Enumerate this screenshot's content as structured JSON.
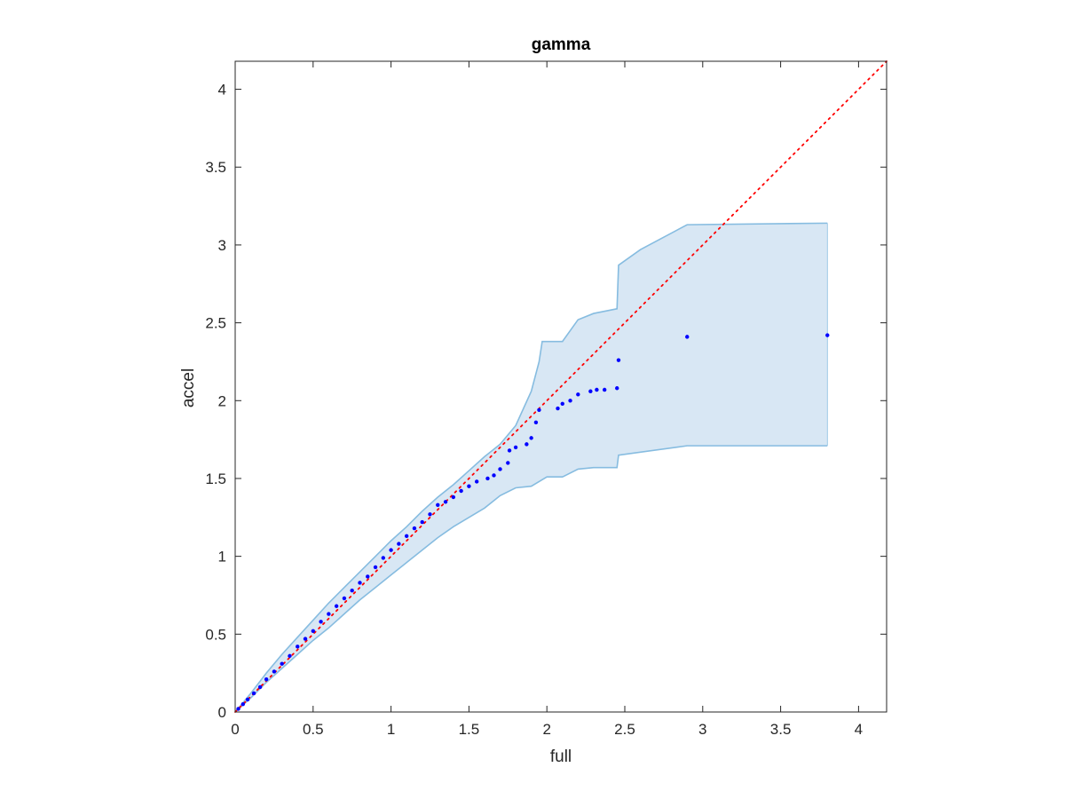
{
  "chart_data": {
    "type": "scatter",
    "title": "gamma",
    "xlabel": "full",
    "ylabel": "accel",
    "xlim": [
      0,
      4.18
    ],
    "ylim": [
      0,
      4.18
    ],
    "xticks": [
      "0",
      "0.5",
      "1",
      "1.5",
      "2",
      "2.5",
      "3",
      "3.5",
      "4"
    ],
    "yticks": [
      "0",
      "0.5",
      "1",
      "1.5",
      "2",
      "2.5",
      "3",
      "3.5",
      "4"
    ],
    "grid": false,
    "colors": {
      "points": "#0000ff",
      "reference_line": "#ff0000",
      "band_fill": "#d8e7f4",
      "band_edge": "#86bce0",
      "axes": "#262626"
    },
    "reference_line": {
      "x": [
        0,
        4.18
      ],
      "y": [
        0,
        4.18
      ],
      "style": "dotted"
    },
    "band": {
      "upper": [
        [
          0,
          0
        ],
        [
          0.1,
          0.12
        ],
        [
          0.2,
          0.25
        ],
        [
          0.3,
          0.37
        ],
        [
          0.4,
          0.48
        ],
        [
          0.5,
          0.59
        ],
        [
          0.6,
          0.7
        ],
        [
          0.7,
          0.8
        ],
        [
          0.8,
          0.9
        ],
        [
          0.9,
          1.0
        ],
        [
          1.0,
          1.1
        ],
        [
          1.1,
          1.19
        ],
        [
          1.2,
          1.29
        ],
        [
          1.3,
          1.38
        ],
        [
          1.4,
          1.46
        ],
        [
          1.5,
          1.55
        ],
        [
          1.6,
          1.64
        ],
        [
          1.7,
          1.72
        ],
        [
          1.8,
          1.84
        ],
        [
          1.9,
          2.06
        ],
        [
          1.95,
          2.25
        ],
        [
          1.97,
          2.38
        ],
        [
          2.1,
          2.38
        ],
        [
          2.2,
          2.52
        ],
        [
          2.3,
          2.56
        ],
        [
          2.45,
          2.59
        ],
        [
          2.46,
          2.87
        ],
        [
          2.6,
          2.97
        ],
        [
          2.9,
          3.13
        ],
        [
          3.8,
          3.14
        ]
      ],
      "lower": [
        [
          0,
          0
        ],
        [
          0.1,
          0.09
        ],
        [
          0.2,
          0.19
        ],
        [
          0.3,
          0.28
        ],
        [
          0.4,
          0.37
        ],
        [
          0.5,
          0.46
        ],
        [
          0.6,
          0.54
        ],
        [
          0.7,
          0.63
        ],
        [
          0.8,
          0.72
        ],
        [
          0.9,
          0.8
        ],
        [
          1.0,
          0.88
        ],
        [
          1.1,
          0.96
        ],
        [
          1.2,
          1.04
        ],
        [
          1.3,
          1.12
        ],
        [
          1.4,
          1.19
        ],
        [
          1.5,
          1.25
        ],
        [
          1.6,
          1.31
        ],
        [
          1.7,
          1.39
        ],
        [
          1.8,
          1.44
        ],
        [
          1.9,
          1.45
        ],
        [
          2.0,
          1.51
        ],
        [
          2.1,
          1.51
        ],
        [
          2.2,
          1.56
        ],
        [
          2.3,
          1.57
        ],
        [
          2.45,
          1.57
        ],
        [
          2.46,
          1.65
        ],
        [
          2.9,
          1.71
        ],
        [
          3.8,
          1.71
        ]
      ]
    },
    "points": [
      [
        0.02,
        0.02
      ],
      [
        0.05,
        0.05
      ],
      [
        0.08,
        0.08
      ],
      [
        0.12,
        0.12
      ],
      [
        0.16,
        0.16
      ],
      [
        0.2,
        0.21
      ],
      [
        0.25,
        0.26
      ],
      [
        0.3,
        0.31
      ],
      [
        0.35,
        0.36
      ],
      [
        0.4,
        0.42
      ],
      [
        0.45,
        0.47
      ],
      [
        0.5,
        0.52
      ],
      [
        0.55,
        0.58
      ],
      [
        0.6,
        0.63
      ],
      [
        0.65,
        0.68
      ],
      [
        0.7,
        0.73
      ],
      [
        0.75,
        0.78
      ],
      [
        0.8,
        0.83
      ],
      [
        0.85,
        0.87
      ],
      [
        0.9,
        0.93
      ],
      [
        0.95,
        0.99
      ],
      [
        1.0,
        1.04
      ],
      [
        1.05,
        1.08
      ],
      [
        1.1,
        1.13
      ],
      [
        1.15,
        1.18
      ],
      [
        1.2,
        1.22
      ],
      [
        1.25,
        1.27
      ],
      [
        1.3,
        1.33
      ],
      [
        1.35,
        1.35
      ],
      [
        1.4,
        1.38
      ],
      [
        1.45,
        1.42
      ],
      [
        1.5,
        1.45
      ],
      [
        1.55,
        1.48
      ],
      [
        1.62,
        1.5
      ],
      [
        1.66,
        1.52
      ],
      [
        1.7,
        1.56
      ],
      [
        1.75,
        1.6
      ],
      [
        1.76,
        1.68
      ],
      [
        1.8,
        1.7
      ],
      [
        1.87,
        1.72
      ],
      [
        1.9,
        1.76
      ],
      [
        1.93,
        1.86
      ],
      [
        1.95,
        1.94
      ],
      [
        2.07,
        1.95
      ],
      [
        2.1,
        1.98
      ],
      [
        2.15,
        2.0
      ],
      [
        2.2,
        2.04
      ],
      [
        2.28,
        2.06
      ],
      [
        2.32,
        2.07
      ],
      [
        2.37,
        2.07
      ],
      [
        2.45,
        2.08
      ],
      [
        2.46,
        2.26
      ],
      [
        2.9,
        2.41
      ],
      [
        3.8,
        2.42
      ]
    ]
  }
}
